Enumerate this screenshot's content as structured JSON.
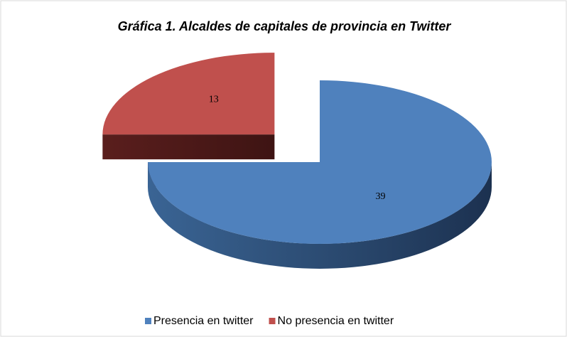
{
  "chart_data": {
    "type": "pie",
    "title": "Gráfica 1. Alcaldes de capitales de provincia en Twitter",
    "categories": [
      "Presencia en twitter",
      "No presencia en twitter"
    ],
    "values": [
      39,
      13
    ],
    "colors": [
      "#4f81bd",
      "#c0504d"
    ],
    "legend": "bottom"
  }
}
